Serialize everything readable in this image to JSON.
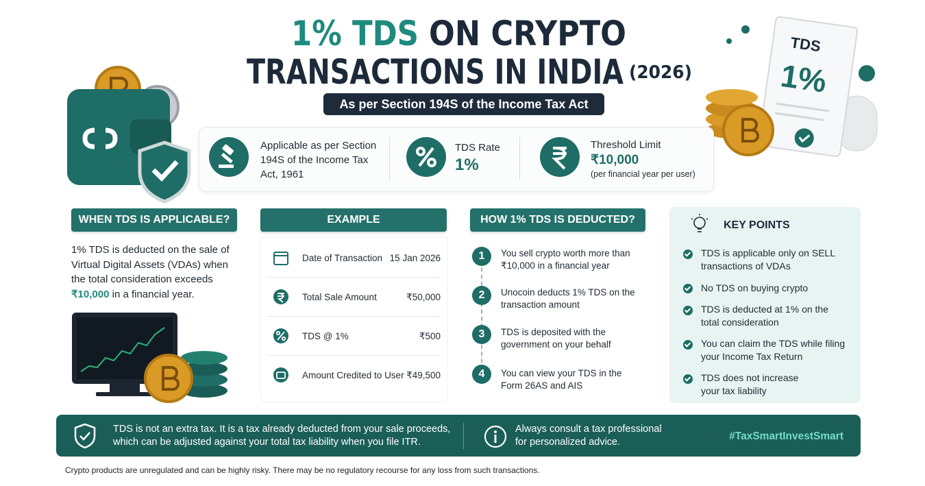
{
  "header": {
    "title_accent": "1% TDS",
    "title_rest": "ON CRYPTO",
    "title_line2": "TRANSACTIONS IN INDIA",
    "year": "(2026)",
    "subtitle": "As per Section 194S of the Income Tax Act"
  },
  "document_illustration": {
    "label": "TDS",
    "value": "1%"
  },
  "info_bar": {
    "applicable": "Applicable as per Section 194S of the Income Tax Act, 1961",
    "rate_label": "TDS Rate",
    "rate_value": "1%",
    "threshold_label": "Threshold Limit",
    "threshold_value": "₹10,000",
    "threshold_note": "(per financial year per user)"
  },
  "when": {
    "heading": "WHEN TDS IS APPLICABLE?",
    "body_before": "1% TDS is deducted on the sale of Virtual Digital Assets (VDAs) when the total consideration exceeds",
    "body_highlight": "₹10,000",
    "body_after": "in a financial year."
  },
  "example": {
    "heading": "EXAMPLE",
    "rows": [
      {
        "label": "Date of Transaction",
        "value": "15 Jan 2026"
      },
      {
        "label": "Total Sale Amount",
        "value": "₹50,000"
      },
      {
        "label": "TDS @ 1%",
        "value": "₹500"
      },
      {
        "label": "Amount Credited to User",
        "value": "₹49,500"
      }
    ]
  },
  "how": {
    "heading": "HOW 1% TDS IS DEDUCTED?",
    "steps": [
      {
        "number": 1,
        "text": "You sell crypto worth more than ₹10,000 in a financial year"
      },
      {
        "number": 2,
        "text": "Unocoin deducts 1% TDS on the transaction amount"
      },
      {
        "number": 3,
        "text": "TDS is deposited with the government on your behalf"
      },
      {
        "number": 4,
        "text": "You can view your TDS in the Form 26AS and AIS"
      }
    ]
  },
  "key_points": {
    "heading": "KEY POINTS",
    "items": [
      "TDS is applicable only on SELL transactions of VDAs",
      "No TDS on buying crypto",
      "TDS is deducted at 1% on the total consideration",
      "You can claim the TDS while filing your Income Tax Return",
      "TDS does not increase your tax liability"
    ]
  },
  "footer": {
    "note": "TDS is not an extra tax. It is a tax already deducted from your sale proceeds, which can be adjusted against your total tax liability when you file ITR.",
    "advice": "Always consult a tax professional for personalized advice.",
    "hashtag": "#TaxSmartInvestSmart"
  },
  "disclaimer": "Crypto products are unregulated and can be highly risky. There may be no regulatory recourse for any loss from such transactions."
}
